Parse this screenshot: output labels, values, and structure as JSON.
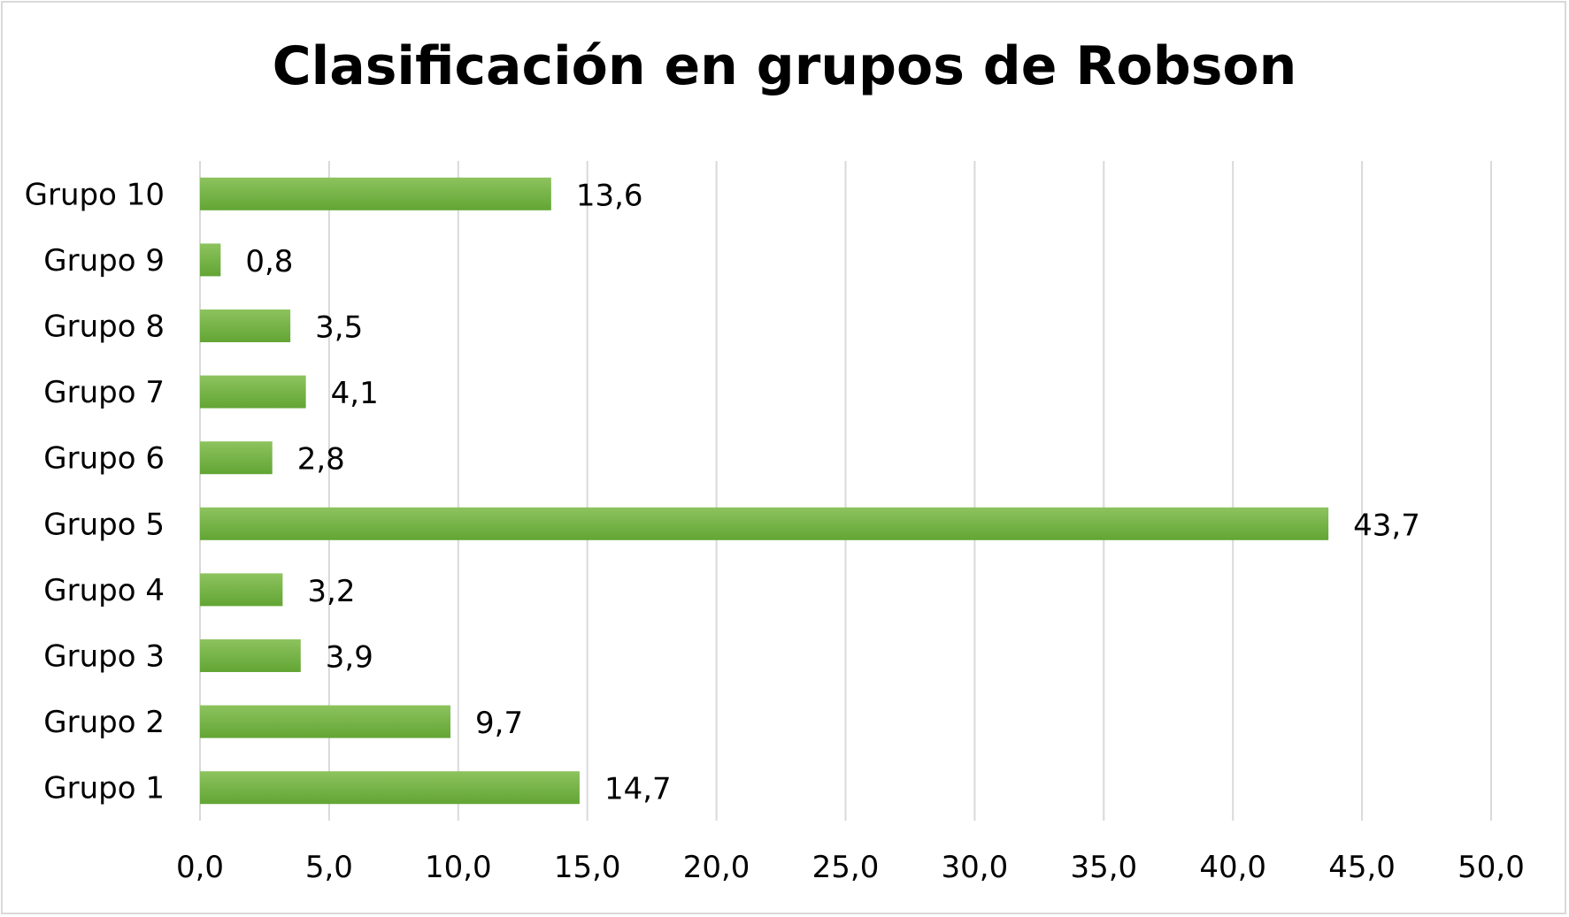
{
  "chart_data": {
    "type": "bar",
    "orientation": "horizontal",
    "title": "Clasificación en grupos de Robson",
    "xlabel": "",
    "ylabel": "",
    "categories": [
      "Grupo 1",
      "Grupo 2",
      "Grupo 3",
      "Grupo 4",
      "Grupo 5",
      "Grupo 6",
      "Grupo 7",
      "Grupo 8",
      "Grupo 9",
      "Grupo 10"
    ],
    "values": [
      14.7,
      9.7,
      3.9,
      3.2,
      43.7,
      2.8,
      4.1,
      3.5,
      0.8,
      13.6
    ],
    "value_labels": [
      "14,7",
      "9,7",
      "3,9",
      "3,2",
      "43,7",
      "2,8",
      "4,1",
      "3,5",
      "0,8",
      "13,6"
    ],
    "xlim": [
      0,
      50
    ],
    "x_ticks": [
      0,
      5,
      10,
      15,
      20,
      25,
      30,
      35,
      40,
      45,
      50
    ],
    "x_tick_labels": [
      "0,0",
      "5,0",
      "10,0",
      "15,0",
      "20,0",
      "25,0",
      "30,0",
      "35,0",
      "40,0",
      "45,0",
      "50,0"
    ],
    "grid": true,
    "grid_axis": "x",
    "legend": "none",
    "category_order": "bottom-to-top",
    "colors": {
      "bar_top": "#8dc35e",
      "bar_bottom": "#62a534",
      "gridline": "#d9d9d9",
      "frame": "#d9d9d9",
      "text": "#000000"
    }
  }
}
